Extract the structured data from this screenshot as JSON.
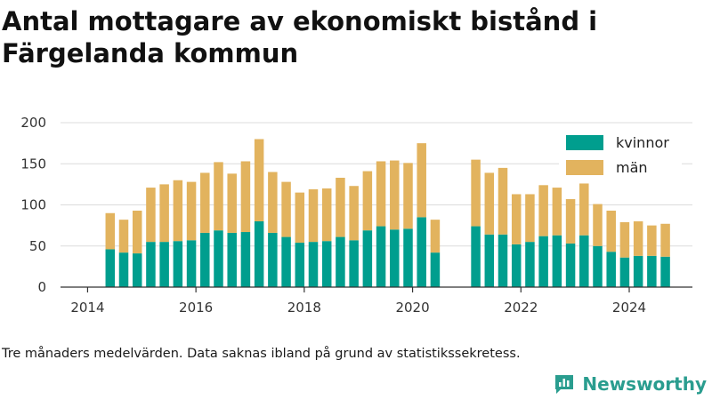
{
  "title": "Antal mottagare av ekonomiskt bistånd i Färgelanda kommun",
  "caption": "Tre månaders medelvärden. Data saknas ibland på grund av statistikssekretess.",
  "brand": {
    "name": "Newsworthy",
    "icon": "newsworthy-logo-icon",
    "color": "#2a9d8f"
  },
  "chart_data": {
    "type": "bar",
    "stacked": true,
    "title": "",
    "xlabel": "",
    "ylabel": "",
    "ylim": [
      0,
      200
    ],
    "yticks": [
      0,
      50,
      100,
      150,
      200
    ],
    "xlim": [
      "2013-07-01",
      "2025-03-01"
    ],
    "xticks": [
      "2014",
      "2016",
      "2018",
      "2020",
      "2022",
      "2024"
    ],
    "grid": true,
    "legend_position": "top-right",
    "x": [
      "2014-06",
      "2014-09",
      "2014-12",
      "2015-03",
      "2015-06",
      "2015-09",
      "2015-12",
      "2016-03",
      "2016-06",
      "2016-09",
      "2016-12",
      "2017-03",
      "2017-06",
      "2017-09",
      "2017-12",
      "2018-03",
      "2018-06",
      "2018-09",
      "2018-12",
      "2019-03",
      "2019-06",
      "2019-09",
      "2019-12",
      "2020-03",
      "2020-06",
      "2021-03",
      "2021-06",
      "2021-09",
      "2021-12",
      "2022-03",
      "2022-06",
      "2022-09",
      "2022-12",
      "2023-03",
      "2023-06",
      "2023-09",
      "2023-12",
      "2024-03",
      "2024-06",
      "2024-09"
    ],
    "series": [
      {
        "name": "kvinnor",
        "color": "#009e8e",
        "values": [
          46,
          42,
          41,
          55,
          55,
          56,
          57,
          66,
          69,
          66,
          67,
          80,
          66,
          61,
          54,
          55,
          56,
          61,
          57,
          69,
          74,
          70,
          71,
          85,
          42,
          74,
          64,
          64,
          52,
          55,
          62,
          63,
          53,
          63,
          50,
          43,
          36,
          38,
          38,
          37
        ]
      },
      {
        "name": "män",
        "color": "#e2b35e",
        "values": [
          44,
          40,
          52,
          66,
          70,
          74,
          71,
          73,
          83,
          72,
          86,
          100,
          74,
          67,
          61,
          64,
          64,
          72,
          66,
          72,
          79,
          84,
          80,
          90,
          40,
          81,
          75,
          81,
          61,
          58,
          62,
          58,
          54,
          63,
          51,
          50,
          43,
          42,
          37,
          40
        ]
      }
    ]
  }
}
